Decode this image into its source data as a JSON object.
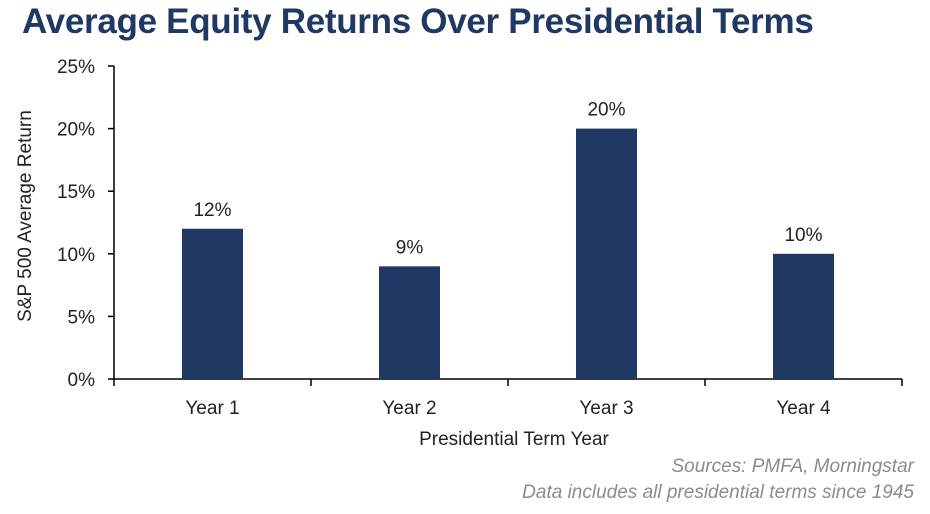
{
  "title": "Average Equity Returns Over Presidential Terms",
  "colors": {
    "title": "#1f3864",
    "bar": "#1f3864",
    "axis": "#000000",
    "text": "#222222",
    "source": "#8c8c8c"
  },
  "chart_data": {
    "type": "bar",
    "categories": [
      "Year 1",
      "Year 2",
      "Year 3",
      "Year 4"
    ],
    "values": [
      12,
      9,
      20,
      10
    ],
    "data_labels": [
      "12%",
      "9%",
      "20%",
      "10%"
    ],
    "xlabel": "Presidential Term Year",
    "ylabel": "S&P 500 Average Return",
    "ylim": [
      0,
      25
    ],
    "yticks": [
      0,
      5,
      10,
      15,
      20,
      25
    ],
    "ytick_labels": [
      "0%",
      "5%",
      "10%",
      "15%",
      "20%",
      "25%"
    ],
    "grid": false,
    "legend": "none"
  },
  "sources": [
    "Sources: PMFA, Morningstar",
    "Data includes all presidential terms since 1945"
  ]
}
